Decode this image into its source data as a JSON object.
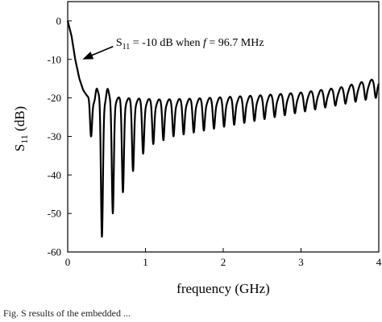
{
  "chart_data": {
    "type": "line",
    "xlabel": "frequency (GHz)",
    "ylabel_main": "S",
    "ylabel_sub": "11",
    "ylabel_unit": " (dB)",
    "xlim": [
      0,
      4
    ],
    "ylim": [
      -60,
      5
    ],
    "xticks": [
      "0",
      "1",
      "2",
      "3",
      "4"
    ],
    "yticks": [
      "0",
      "-10",
      "-20",
      "-30",
      "-40",
      "-50",
      "-60"
    ],
    "annotation": {
      "prefix": "S",
      "sub": "11",
      "text_before_f": " = -10 dB when ",
      "f_symbol": "f",
      "text_after_f": " = 96.7 MHz",
      "arrow_tip": [
        0.19,
        -10
      ],
      "text_anchor": [
        0.62,
        -6.5
      ]
    },
    "envelope": {
      "x": [
        0,
        0.05,
        0.097,
        0.15,
        0.2,
        0.25,
        0.3,
        0.5,
        0.8,
        1.2,
        1.6,
        2.0,
        2.5,
        3.0,
        3.5,
        4.0
      ],
      "y": [
        0,
        -4,
        -10,
        -15,
        -18,
        -19.5,
        -20,
        -20.8,
        -21.3,
        -21.6,
        -21.4,
        -21,
        -20.5,
        -19.8,
        -18.5,
        -16
      ]
    },
    "resonances": [
      {
        "x": 0.3,
        "y": -30
      },
      {
        "x": 0.44,
        "y": -55.5
      },
      {
        "x": 0.58,
        "y": -49
      },
      {
        "x": 0.71,
        "y": -43.5
      },
      {
        "x": 0.84,
        "y": -38
      },
      {
        "x": 0.97,
        "y": -33.5
      },
      {
        "x": 1.1,
        "y": -31
      },
      {
        "x": 1.23,
        "y": -30
      },
      {
        "x": 1.36,
        "y": -29
      },
      {
        "x": 1.49,
        "y": -28.5
      },
      {
        "x": 1.62,
        "y": -28
      },
      {
        "x": 1.75,
        "y": -27.5
      },
      {
        "x": 1.88,
        "y": -27
      },
      {
        "x": 2.01,
        "y": -26.5
      },
      {
        "x": 2.14,
        "y": -26
      },
      {
        "x": 2.27,
        "y": -25.5
      },
      {
        "x": 2.4,
        "y": -25
      },
      {
        "x": 2.53,
        "y": -24.5
      },
      {
        "x": 2.66,
        "y": -24
      },
      {
        "x": 2.79,
        "y": -23.5
      },
      {
        "x": 2.92,
        "y": -23
      },
      {
        "x": 3.05,
        "y": -22.5
      },
      {
        "x": 3.18,
        "y": -22
      },
      {
        "x": 3.31,
        "y": -21.5
      },
      {
        "x": 3.44,
        "y": -21
      },
      {
        "x": 3.57,
        "y": -20.5
      },
      {
        "x": 3.7,
        "y": -20
      },
      {
        "x": 3.83,
        "y": -19.5
      },
      {
        "x": 3.96,
        "y": -19
      }
    ],
    "peaks": [
      {
        "x": 0.37,
        "y": -18
      },
      {
        "x": 0.51,
        "y": -18.5
      }
    ],
    "grid": false,
    "legend": "none"
  },
  "caption": "Fig.  S   results of the embedded ..."
}
